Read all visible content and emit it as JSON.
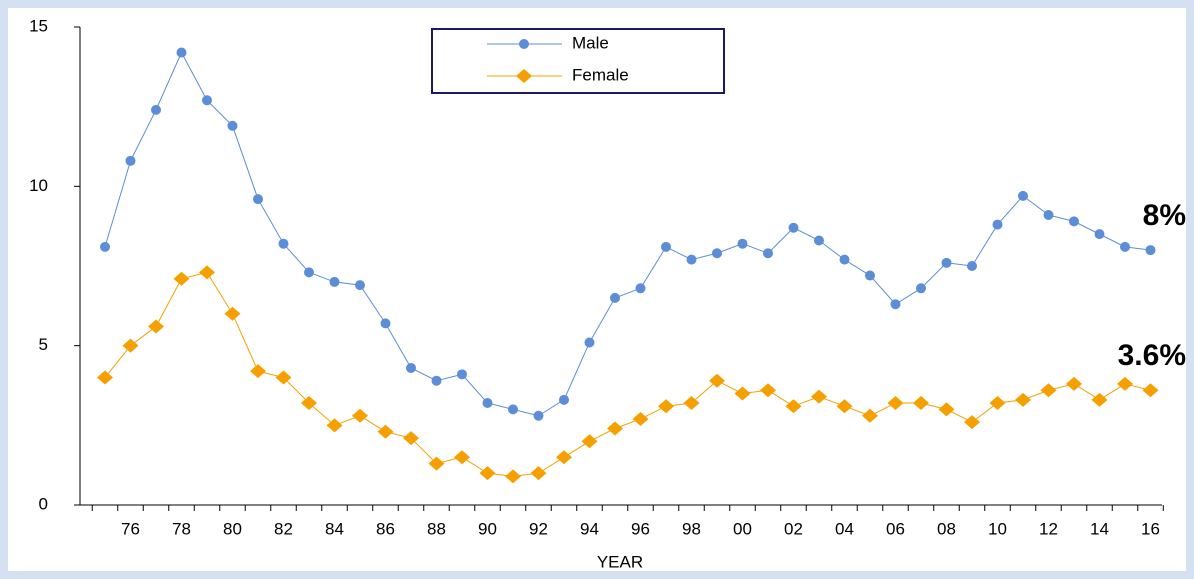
{
  "chart_data": {
    "type": "line",
    "x_label": "YEAR",
    "categories": [
      null,
      "76",
      null,
      "78",
      null,
      "80",
      null,
      "82",
      null,
      "84",
      null,
      "86",
      null,
      "88",
      null,
      "90",
      null,
      "92",
      null,
      "94",
      null,
      "96",
      null,
      "98",
      null,
      "00",
      null,
      "02",
      null,
      "04",
      null,
      "06",
      null,
      "08",
      null,
      "10",
      null,
      "12",
      null,
      "14",
      null,
      "16"
    ],
    "series": [
      {
        "name": "Male",
        "color": "#5b8ed6",
        "marker": "circle",
        "values": [
          8.1,
          10.8,
          12.4,
          14.2,
          12.7,
          11.9,
          9.6,
          8.2,
          7.3,
          7.0,
          6.9,
          5.7,
          4.3,
          3.9,
          4.1,
          3.2,
          3.0,
          2.8,
          3.3,
          5.1,
          6.5,
          6.8,
          8.1,
          7.7,
          7.9,
          8.2,
          7.9,
          8.7,
          8.3,
          7.7,
          7.2,
          6.3,
          6.8,
          7.6,
          7.5,
          8.8,
          9.7,
          9.1,
          8.9,
          8.5,
          8.1,
          8.0
        ]
      },
      {
        "name": "Female",
        "color": "#f5a000",
        "marker": "diamond",
        "values": [
          4.0,
          5.0,
          5.6,
          7.1,
          7.3,
          6.0,
          4.2,
          4.0,
          3.2,
          2.5,
          2.8,
          2.3,
          2.1,
          1.3,
          1.5,
          1.0,
          0.9,
          1.0,
          1.5,
          2.0,
          2.4,
          2.7,
          3.1,
          3.2,
          3.9,
          3.5,
          3.6,
          3.1,
          3.4,
          3.1,
          2.8,
          3.2,
          3.2,
          3.0,
          2.6,
          3.2,
          3.3,
          3.6,
          3.8,
          3.3,
          3.8,
          3.6
        ]
      }
    ],
    "ylim": [
      0,
      15
    ],
    "yticks": [
      0,
      5,
      10,
      15
    ],
    "annotations": [
      "8%",
      "3.6%"
    ],
    "legend": "top-center"
  }
}
